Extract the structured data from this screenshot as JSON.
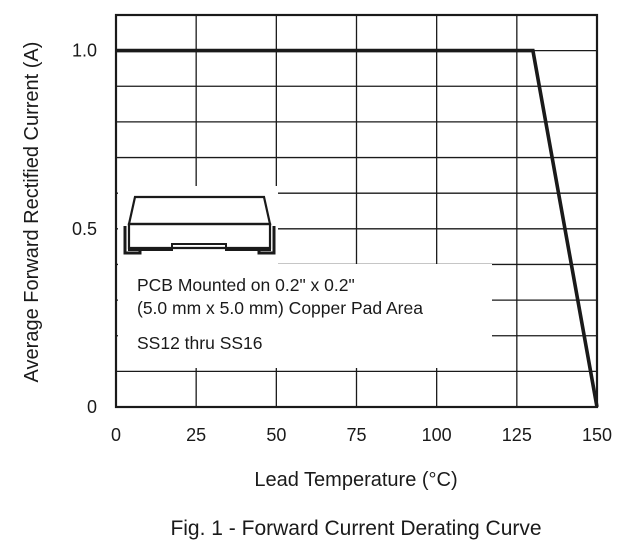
{
  "chart_data": {
    "type": "line",
    "x": [
      0,
      130,
      150
    ],
    "y": [
      1.0,
      1.0,
      0
    ],
    "xlabel": "Lead Temperature (°C)",
    "ylabel": "Average Forward Rectified Current (A)",
    "caption": "Fig. 1 - Forward Current Derating Curve",
    "xlim": [
      0,
      150
    ],
    "ylim": [
      0,
      1.1
    ],
    "x_ticks": [
      0,
      25,
      50,
      75,
      100,
      125,
      150
    ],
    "y_ticks": [
      0,
      0.5,
      1.0
    ],
    "x_tick_labels": [
      "0",
      "25",
      "50",
      "75",
      "100",
      "125",
      "150"
    ],
    "y_tick_labels": [
      "0",
      "0.5",
      "1.0"
    ],
    "grid": true,
    "annotations": [
      "PCB Mounted on 0.2\" x 0.2\"",
      "(5.0 mm x 5.0 mm) Copper Pad Area",
      "SS12 thru SS16"
    ],
    "inset_icon": "smd-package-outline-icon"
  }
}
